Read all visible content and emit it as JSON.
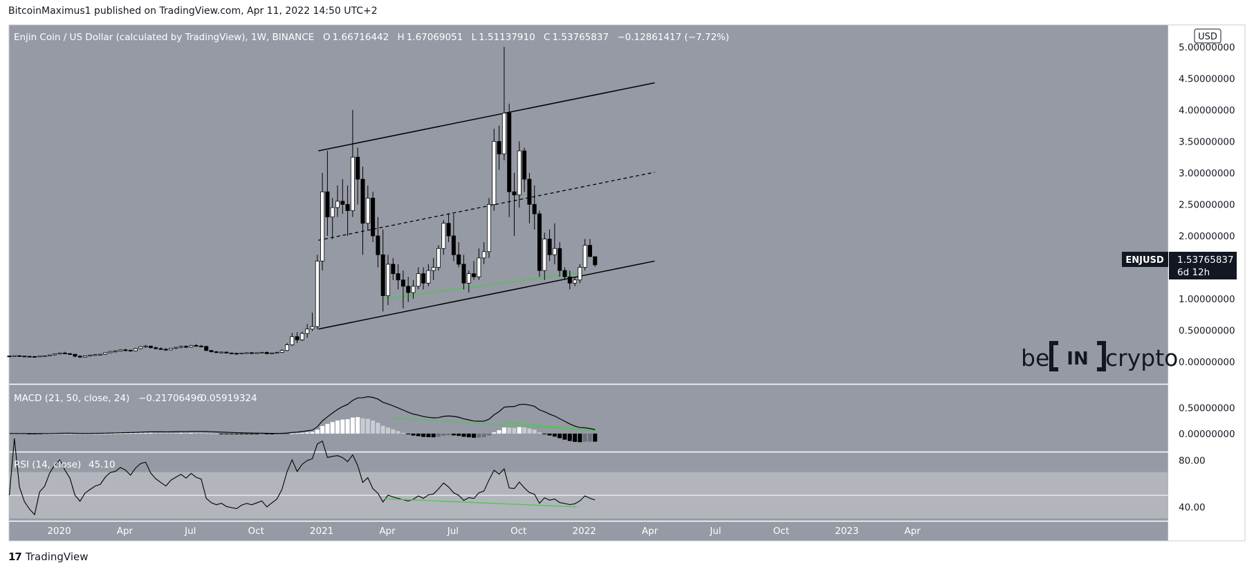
{
  "header": {
    "published": "BitcoinMaximus1 published on TradingView.com, Apr 11, 2022 14:50 UTC+2"
  },
  "footer": {
    "logo": "17",
    "brand": "TradingView"
  },
  "watermark": {
    "left": "be",
    "middle": "IN",
    "right": "crypto"
  },
  "colors": {
    "background": "#959aa4",
    "up": "#ffffff",
    "down": "#000000",
    "green": "#4ac94a",
    "axis_bg": "#ffffff",
    "price_label_bg": "#131722"
  },
  "chart_data": [
    {
      "type": "candlestick",
      "title": "Enjin Coin / US Dollar (calculated by TradingView), 1W, BINANCE",
      "ohlc_header": {
        "o_label": "O",
        "o": "1.66716442",
        "h_label": "H",
        "h": "1.67069051",
        "l_label": "L",
        "l": "1.51137910",
        "c_label": "C",
        "c": "1.53765837",
        "change": "−0.12861417 (−7.72%)"
      },
      "currency": "USD",
      "symbol": "ENJUSD",
      "last_price": "1.53765837",
      "countdown": "6d 12h",
      "y_ticks": [
        "5.00000000",
        "4.50000000",
        "4.00000000",
        "3.50000000",
        "3.00000000",
        "2.50000000",
        "2.00000000",
        "1.50000000",
        "1.00000000",
        "0.50000000",
        "0.00000000"
      ],
      "y_tick_values": [
        5,
        4.5,
        4,
        3.5,
        3,
        2.5,
        2,
        1.5,
        1,
        0.5,
        0
      ],
      "ylim": [
        -0.35,
        5.35
      ],
      "x_ticks": [
        "2020",
        "Apr",
        "Jul",
        "Oct",
        "2021",
        "Apr",
        "Jul",
        "Oct",
        "2022",
        "Apr",
        "Jul",
        "Oct",
        "2023",
        "Apr"
      ],
      "x_tick_weeks": [
        0,
        13,
        26,
        39,
        52,
        65,
        78,
        91,
        104,
        117,
        130,
        143,
        156,
        169
      ],
      "channel": {
        "upper": [
          [
            61.2,
            3.35
          ],
          [
            127.8,
            4.43
          ]
        ],
        "middle": [
          [
            61.2,
            1.93
          ],
          [
            127.8,
            3.01
          ]
        ],
        "lower": [
          [
            61.2,
            0.52
          ],
          [
            127.8,
            1.6
          ]
        ]
      },
      "support_line": [
        [
          74.3,
          1.0
        ],
        [
          112.4,
          1.41
        ]
      ],
      "candles": [
        [
          0,
          0.093,
          0.095,
          0.088,
          0.09
        ],
        [
          1,
          0.09,
          0.1,
          0.087,
          0.098
        ],
        [
          2,
          0.098,
          0.102,
          0.09,
          0.092
        ],
        [
          3,
          0.092,
          0.095,
          0.085,
          0.088
        ],
        [
          4,
          0.088,
          0.092,
          0.082,
          0.085
        ],
        [
          5,
          0.085,
          0.09,
          0.08,
          0.082
        ],
        [
          6,
          0.082,
          0.095,
          0.078,
          0.092
        ],
        [
          7,
          0.092,
          0.102,
          0.085,
          0.096
        ],
        [
          8,
          0.096,
          0.115,
          0.09,
          0.11
        ],
        [
          9,
          0.11,
          0.13,
          0.1,
          0.125
        ],
        [
          10,
          0.125,
          0.15,
          0.115,
          0.14
        ],
        [
          11,
          0.14,
          0.16,
          0.12,
          0.13
        ],
        [
          12,
          0.13,
          0.14,
          0.11,
          0.12
        ],
        [
          13,
          0.12,
          0.125,
          0.07,
          0.09
        ],
        [
          14,
          0.09,
          0.105,
          0.06,
          0.075
        ],
        [
          15,
          0.075,
          0.1,
          0.07,
          0.095
        ],
        [
          16,
          0.095,
          0.11,
          0.085,
          0.105
        ],
        [
          17,
          0.105,
          0.12,
          0.095,
          0.115
        ],
        [
          18,
          0.115,
          0.13,
          0.105,
          0.12
        ],
        [
          19,
          0.12,
          0.15,
          0.11,
          0.145
        ],
        [
          20,
          0.145,
          0.175,
          0.135,
          0.165
        ],
        [
          21,
          0.165,
          0.185,
          0.15,
          0.17
        ],
        [
          22,
          0.17,
          0.2,
          0.16,
          0.19
        ],
        [
          23,
          0.19,
          0.21,
          0.17,
          0.185
        ],
        [
          24,
          0.185,
          0.195,
          0.16,
          0.175
        ],
        [
          25,
          0.175,
          0.22,
          0.165,
          0.21
        ],
        [
          26,
          0.21,
          0.25,
          0.195,
          0.24
        ],
        [
          27,
          0.24,
          0.27,
          0.22,
          0.25
        ],
        [
          28,
          0.25,
          0.26,
          0.21,
          0.225
        ],
        [
          29,
          0.225,
          0.24,
          0.195,
          0.21
        ],
        [
          30,
          0.21,
          0.23,
          0.19,
          0.2
        ],
        [
          31,
          0.2,
          0.215,
          0.175,
          0.19
        ],
        [
          32,
          0.19,
          0.22,
          0.18,
          0.215
        ],
        [
          33,
          0.215,
          0.24,
          0.2,
          0.23
        ],
        [
          34,
          0.23,
          0.26,
          0.215,
          0.245
        ],
        [
          35,
          0.245,
          0.265,
          0.22,
          0.235
        ],
        [
          36,
          0.235,
          0.27,
          0.225,
          0.26
        ],
        [
          37,
          0.26,
          0.285,
          0.24,
          0.25
        ],
        [
          38,
          0.25,
          0.27,
          0.23,
          0.245
        ],
        [
          39,
          0.245,
          0.255,
          0.17,
          0.18
        ],
        [
          40,
          0.18,
          0.19,
          0.15,
          0.16
        ],
        [
          41,
          0.16,
          0.17,
          0.14,
          0.15
        ],
        [
          42,
          0.15,
          0.165,
          0.135,
          0.155
        ],
        [
          43,
          0.155,
          0.16,
          0.13,
          0.14
        ],
        [
          44,
          0.14,
          0.15,
          0.125,
          0.135
        ],
        [
          45,
          0.135,
          0.145,
          0.12,
          0.13
        ],
        [
          46,
          0.13,
          0.145,
          0.12,
          0.14
        ],
        [
          47,
          0.14,
          0.15,
          0.13,
          0.145
        ],
        [
          48,
          0.145,
          0.155,
          0.135,
          0.14
        ],
        [
          49,
          0.14,
          0.15,
          0.13,
          0.145
        ],
        [
          50,
          0.145,
          0.16,
          0.135,
          0.15
        ],
        [
          51,
          0.15,
          0.165,
          0.12,
          0.13
        ],
        [
          52,
          0.13,
          0.15,
          0.12,
          0.14
        ],
        [
          53,
          0.14,
          0.16,
          0.13,
          0.15
        ],
        [
          54,
          0.15,
          0.2,
          0.14,
          0.18
        ],
        [
          55,
          0.18,
          0.3,
          0.17,
          0.27
        ],
        [
          56,
          0.27,
          0.46,
          0.25,
          0.4
        ],
        [
          57,
          0.4,
          0.47,
          0.3,
          0.35
        ],
        [
          58,
          0.35,
          0.48,
          0.33,
          0.45
        ],
        [
          59,
          0.45,
          0.6,
          0.38,
          0.52
        ],
        [
          60,
          0.52,
          0.78,
          0.49,
          0.56
        ],
        [
          61,
          0.56,
          1.7,
          0.52,
          1.6
        ],
        [
          62,
          1.6,
          3.0,
          1.45,
          2.7
        ],
        [
          63,
          2.7,
          3.35,
          2.0,
          2.3
        ],
        [
          64,
          2.3,
          2.6,
          1.95,
          2.45
        ],
        [
          65,
          2.45,
          2.8,
          2.3,
          2.55
        ],
        [
          66,
          2.55,
          2.9,
          2.35,
          2.5
        ],
        [
          67,
          2.5,
          2.8,
          2.0,
          2.4
        ],
        [
          68,
          2.4,
          4.0,
          2.3,
          3.25
        ],
        [
          69,
          3.25,
          3.4,
          2.5,
          2.9
        ],
        [
          70,
          2.9,
          3.1,
          1.7,
          2.2
        ],
        [
          71,
          2.2,
          2.8,
          2.1,
          2.6
        ],
        [
          72,
          2.6,
          2.7,
          1.9,
          2.0
        ],
        [
          73,
          2.0,
          2.3,
          1.5,
          1.7
        ],
        [
          74,
          1.7,
          2.1,
          0.8,
          1.05
        ],
        [
          75,
          1.05,
          1.7,
          0.9,
          1.55
        ],
        [
          76,
          1.55,
          1.65,
          1.3,
          1.4
        ],
        [
          77,
          1.4,
          1.55,
          1.15,
          1.3
        ],
        [
          78,
          1.3,
          1.45,
          0.85,
          1.2
        ],
        [
          79,
          1.2,
          1.35,
          0.95,
          1.1
        ],
        [
          80,
          1.1,
          1.3,
          1.0,
          1.2
        ],
        [
          81,
          1.2,
          1.5,
          1.15,
          1.4
        ],
        [
          82,
          1.4,
          1.5,
          1.15,
          1.25
        ],
        [
          83,
          1.25,
          1.55,
          1.2,
          1.45
        ],
        [
          84,
          1.45,
          1.65,
          1.3,
          1.5
        ],
        [
          85,
          1.5,
          1.85,
          1.45,
          1.8
        ],
        [
          86,
          1.8,
          2.25,
          1.7,
          2.2
        ],
        [
          87,
          2.2,
          2.35,
          1.9,
          2.0
        ],
        [
          88,
          2.0,
          2.35,
          1.6,
          1.7
        ],
        [
          89,
          1.7,
          1.9,
          1.5,
          1.55
        ],
        [
          90,
          1.55,
          1.7,
          1.15,
          1.25
        ],
        [
          91,
          1.25,
          1.45,
          1.1,
          1.4
        ],
        [
          92,
          1.4,
          1.6,
          1.3,
          1.35
        ],
        [
          93,
          1.35,
          1.8,
          1.3,
          1.65
        ],
        [
          94,
          1.65,
          1.9,
          1.55,
          1.75
        ],
        [
          95,
          1.75,
          2.6,
          1.65,
          2.5
        ],
        [
          96,
          2.5,
          3.7,
          2.4,
          3.5
        ],
        [
          97,
          3.5,
          3.75,
          3.05,
          3.3
        ],
        [
          98,
          3.3,
          5.0,
          3.2,
          3.95
        ],
        [
          99,
          3.95,
          4.1,
          2.3,
          2.7
        ],
        [
          100,
          2.7,
          3.0,
          2.0,
          2.65
        ],
        [
          101,
          2.65,
          3.5,
          2.45,
          3.35
        ],
        [
          102,
          3.35,
          3.4,
          2.7,
          2.9
        ],
        [
          103,
          2.9,
          3.0,
          2.2,
          2.5
        ],
        [
          104,
          2.5,
          2.8,
          2.1,
          2.35
        ],
        [
          105,
          2.35,
          2.4,
          1.35,
          1.45
        ],
        [
          106,
          1.45,
          2.05,
          1.3,
          1.95
        ],
        [
          107,
          1.95,
          2.1,
          1.6,
          1.7
        ],
        [
          108,
          1.7,
          2.2,
          1.55,
          1.8
        ],
        [
          109,
          1.8,
          1.9,
          1.35,
          1.45
        ],
        [
          110,
          1.45,
          1.5,
          1.3,
          1.35
        ],
        [
          111,
          1.35,
          1.45,
          1.15,
          1.25
        ],
        [
          112,
          1.25,
          1.35,
          1.2,
          1.3
        ],
        [
          113,
          1.3,
          1.55,
          1.25,
          1.5
        ],
        [
          114,
          1.5,
          1.95,
          1.45,
          1.85
        ],
        [
          115,
          1.85,
          1.95,
          1.7,
          1.67
        ],
        [
          116,
          1.67,
          1.67,
          1.51,
          1.54
        ]
      ]
    },
    {
      "type": "bar",
      "title": "MACD (21, 50, close, 24)",
      "values_text": [
        "−0.21706496",
        "0.05919324"
      ],
      "y_ticks": [
        "0.50000000",
        "0.00000000"
      ],
      "y_tick_values": [
        0.5,
        0
      ],
      "ylim": [
        -0.35,
        0.95
      ]
    },
    {
      "type": "line",
      "title": "RSI (14, close)",
      "value_text": "45.10",
      "y_ticks": [
        "80.00",
        "40.00"
      ],
      "y_tick_values": [
        80,
        40
      ],
      "ylim": [
        28,
        87
      ],
      "band": [
        30,
        70
      ],
      "midline": 50,
      "divergence_line": [
        [
          74.3,
          47
        ],
        [
          112.4,
          40
        ]
      ]
    }
  ]
}
